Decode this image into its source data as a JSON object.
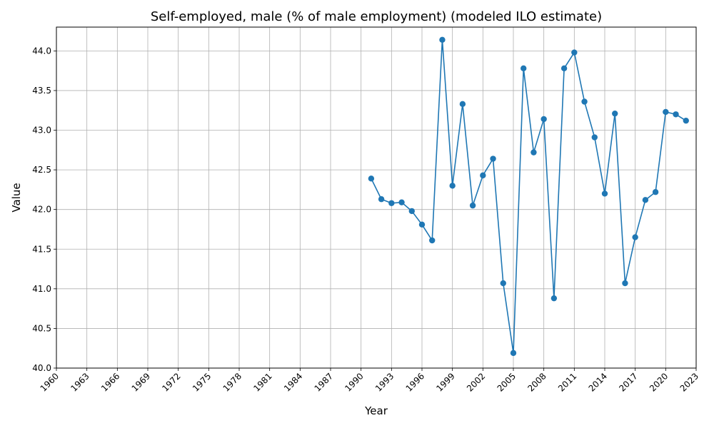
{
  "chart_data": {
    "type": "line",
    "title": "Self-employed, male (% of male employment) (modeled ILO estimate)",
    "xlabel": "Year",
    "ylabel": "Value",
    "xlim": [
      1960,
      2023
    ],
    "ylim": [
      40.0,
      44.3
    ],
    "xticks": [
      1960,
      1963,
      1966,
      1969,
      1972,
      1975,
      1978,
      1981,
      1984,
      1987,
      1990,
      1993,
      1996,
      1999,
      2002,
      2005,
      2008,
      2011,
      2014,
      2017,
      2020,
      2023
    ],
    "yticks": [
      40.0,
      40.5,
      41.0,
      41.5,
      42.0,
      42.5,
      43.0,
      43.5,
      44.0
    ],
    "grid": true,
    "color": "#1f77b4",
    "series": [
      {
        "x": [
          1991,
          1992,
          1993,
          1994,
          1995,
          1996,
          1997,
          1998,
          1999,
          2000,
          2001,
          2002,
          2003,
          2004,
          2005,
          2006,
          2007,
          2008,
          2009,
          2010,
          2011,
          2012,
          2013,
          2014,
          2015,
          2016,
          2017,
          2018,
          2019,
          2020,
          2021,
          2022
        ],
        "values": [
          42.39,
          42.13,
          42.08,
          42.09,
          41.98,
          41.81,
          41.61,
          44.14,
          42.3,
          43.33,
          42.05,
          42.43,
          42.64,
          41.07,
          40.19,
          43.78,
          42.72,
          43.14,
          40.88,
          43.78,
          43.98,
          43.36,
          42.91,
          42.2,
          43.21,
          41.07,
          41.65,
          42.12,
          42.22,
          43.23,
          43.2,
          43.12
        ]
      }
    ]
  }
}
